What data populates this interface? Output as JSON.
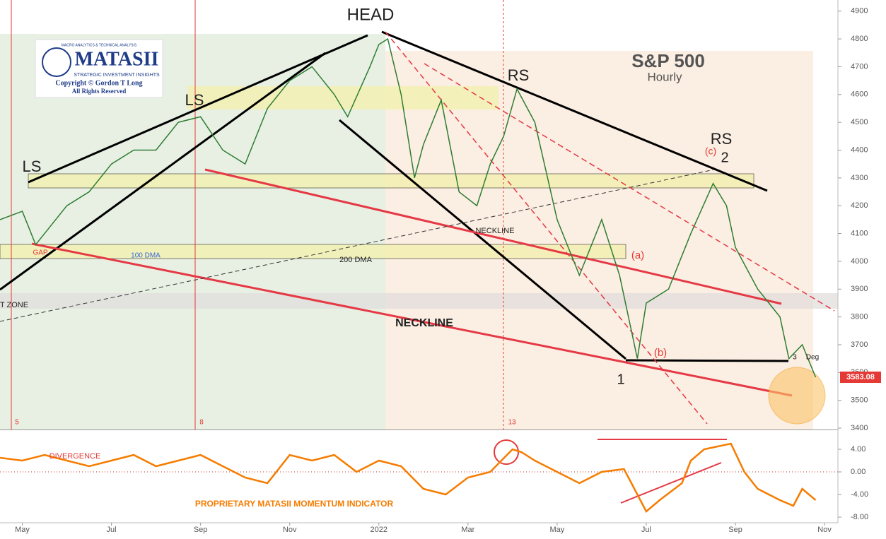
{
  "chart_data": [
    {
      "type": "line",
      "title": "S&P 500",
      "subtitle": "Hourly",
      "xlim": [
        -0.5,
        18.3
      ],
      "ylim": [
        3395,
        4940
      ],
      "yticks": [
        3400,
        3500,
        3600,
        3700,
        3800,
        3900,
        4000,
        4100,
        4200,
        4300,
        4400,
        4500,
        4600,
        4700,
        4800,
        4900
      ],
      "x": [
        -0.5,
        0,
        0.3,
        1,
        1.5,
        2,
        2.5,
        3,
        3.5,
        4,
        4.5,
        5,
        5.5,
        6,
        6.5,
        7,
        7.3,
        7.8,
        8,
        8.2,
        8.5,
        8.8,
        9,
        9.4,
        9.8,
        10.2,
        10.5,
        10.8,
        11.1,
        11.5,
        12,
        12.5,
        13,
        13.4,
        13.8,
        14,
        14.5,
        15,
        15.5,
        15.8,
        16,
        16.5,
        17,
        17.2,
        17.5,
        17.8
      ],
      "series": [
        {
          "color": "#2e7d32",
          "values": [
            4150,
            4180,
            4060,
            4200,
            4250,
            4350,
            4400,
            4400,
            4500,
            4520,
            4400,
            4350,
            4550,
            4650,
            4700,
            4600,
            4520,
            4700,
            4780,
            4800,
            4600,
            4300,
            4420,
            4580,
            4250,
            4200,
            4350,
            4450,
            4620,
            4500,
            4150,
            3950,
            4150,
            3950,
            3650,
            3850,
            3900,
            4100,
            4280,
            4200,
            4050,
            3900,
            3800,
            3650,
            3700,
            3583.08
          ]
        }
      ],
      "annotations": [
        "HEAD",
        "LS",
        "LS",
        "RS",
        "RS",
        "NECKLINE",
        "NECKLINE",
        "200 DMA",
        "100 DMA",
        "GAP",
        "T ZONE",
        "(a)",
        "(b)",
        "(c)",
        "1",
        "2",
        "3",
        "Deg",
        "5",
        "8",
        "13"
      ],
      "logo": {
        "name": "MATASII",
        "tagline": "MACRO ANALYTICS & TECHNICAL ANALYSIS",
        "subline": "STRATEGIC INVESTMENT INSIGHTS",
        "copyright": "Copyright © Gordon T Long",
        "rights": "All Rights Reserved"
      }
    },
    {
      "type": "line",
      "xlim": [
        -0.5,
        18.3
      ],
      "ylim": [
        -9,
        7
      ],
      "yticks": [
        {
          "value": 4,
          "label": "4.00"
        },
        {
          "value": 0,
          "label": "0.00"
        },
        {
          "value": -4,
          "label": "-4.00"
        },
        {
          "value": -8,
          "label": "-8.00"
        }
      ],
      "xticks": [
        {
          "value": 0,
          "label": "May"
        },
        {
          "value": 2,
          "label": "Jul"
        },
        {
          "value": 4,
          "label": "Sep"
        },
        {
          "value": 6,
          "label": "Nov"
        },
        {
          "value": 8,
          "label": "2022"
        },
        {
          "value": 10,
          "label": "Mar"
        },
        {
          "value": 12,
          "label": "May"
        },
        {
          "value": 14,
          "label": "Jul"
        },
        {
          "value": 16,
          "label": "Sep"
        },
        {
          "value": 18,
          "label": "Nov"
        }
      ],
      "x": [
        -0.5,
        0,
        0.5,
        1,
        1.5,
        2,
        2.5,
        3,
        3.5,
        4,
        4.5,
        5,
        5.5,
        6,
        6.5,
        7,
        7.5,
        8,
        8.5,
        9,
        9.5,
        10,
        10.5,
        11,
        11.2,
        11.5,
        12,
        12.5,
        13,
        13.5,
        14,
        14.3,
        14.8,
        15,
        15.3,
        15.6,
        15.9,
        16.2,
        16.5,
        17,
        17.3,
        17.5,
        17.8
      ],
      "series": [
        {
          "color": "#f57c00",
          "values": [
            2.5,
            2,
            3,
            2,
            1,
            2,
            3,
            1,
            2,
            3,
            1,
            -1,
            -2,
            3,
            2,
            3,
            0,
            2,
            1,
            -3,
            -4,
            -1,
            0,
            4,
            3.5,
            2,
            0,
            -2,
            0,
            0.5,
            -7,
            -5,
            -2,
            2,
            4,
            4.5,
            5,
            0,
            -3,
            -5,
            -6,
            -3,
            -5
          ]
        }
      ],
      "annotations": [
        "DIVERGENCE",
        "PROPRIETARY MATASII MOMENTUM INDICATOR"
      ]
    }
  ]
}
